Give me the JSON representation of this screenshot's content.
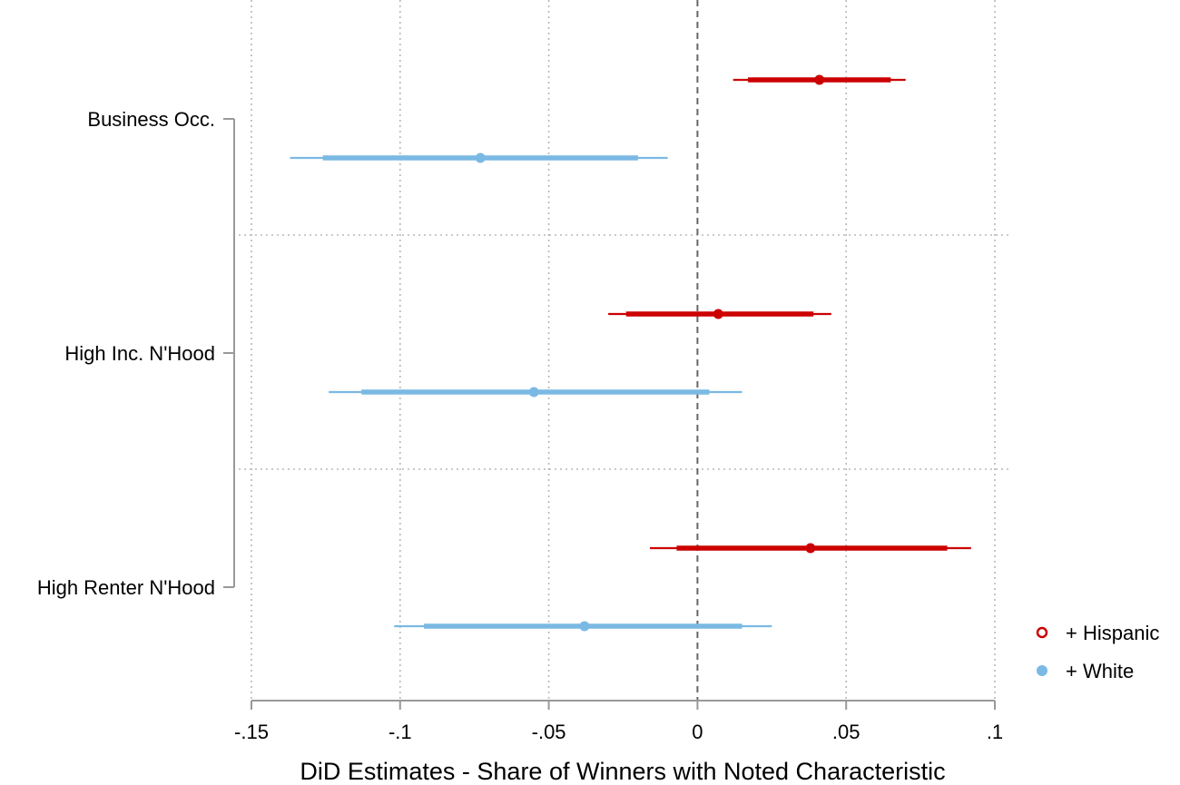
{
  "chart_data": {
    "type": "coefplot",
    "xlabel": "DiD Estimates - Share of Winners with Noted Characteristic",
    "xlim": [
      -0.15,
      0.1
    ],
    "x_ticks": [
      -0.15,
      -0.1,
      -0.05,
      0,
      0.05,
      0.1
    ],
    "x_tick_labels": [
      "-.15",
      "-.1",
      "-.05",
      "0",
      ".05",
      ".1"
    ],
    "reference_line": 0,
    "categories": [
      "Business Occ.",
      "High Inc. N'Hood",
      "High Renter N'Hood"
    ],
    "series": [
      {
        "name": "+ Hispanic",
        "color": "#cc0000",
        "marker": "hollow-circle",
        "points": [
          {
            "estimate": 0.041,
            "ci90": [
              0.017,
              0.065
            ],
            "ci95": [
              0.012,
              0.07
            ]
          },
          {
            "estimate": 0.007,
            "ci90": [
              -0.024,
              0.039
            ],
            "ci95": [
              -0.03,
              0.045
            ]
          },
          {
            "estimate": 0.038,
            "ci90": [
              -0.007,
              0.084
            ],
            "ci95": [
              -0.016,
              0.092
            ]
          }
        ]
      },
      {
        "name": "+ White",
        "color": "#7ab9e3",
        "marker": "filled-circle",
        "points": [
          {
            "estimate": -0.073,
            "ci90": [
              -0.126,
              -0.02
            ],
            "ci95": [
              -0.137,
              -0.01
            ]
          },
          {
            "estimate": -0.055,
            "ci90": [
              -0.113,
              0.004
            ],
            "ci95": [
              -0.124,
              0.015
            ]
          },
          {
            "estimate": -0.038,
            "ci90": [
              -0.092,
              0.015
            ],
            "ci95": [
              -0.102,
              0.025
            ]
          }
        ]
      }
    ],
    "legend": {
      "position": "bottom-right",
      "items": [
        "+ Hispanic",
        "+ White"
      ]
    },
    "grid": true
  }
}
